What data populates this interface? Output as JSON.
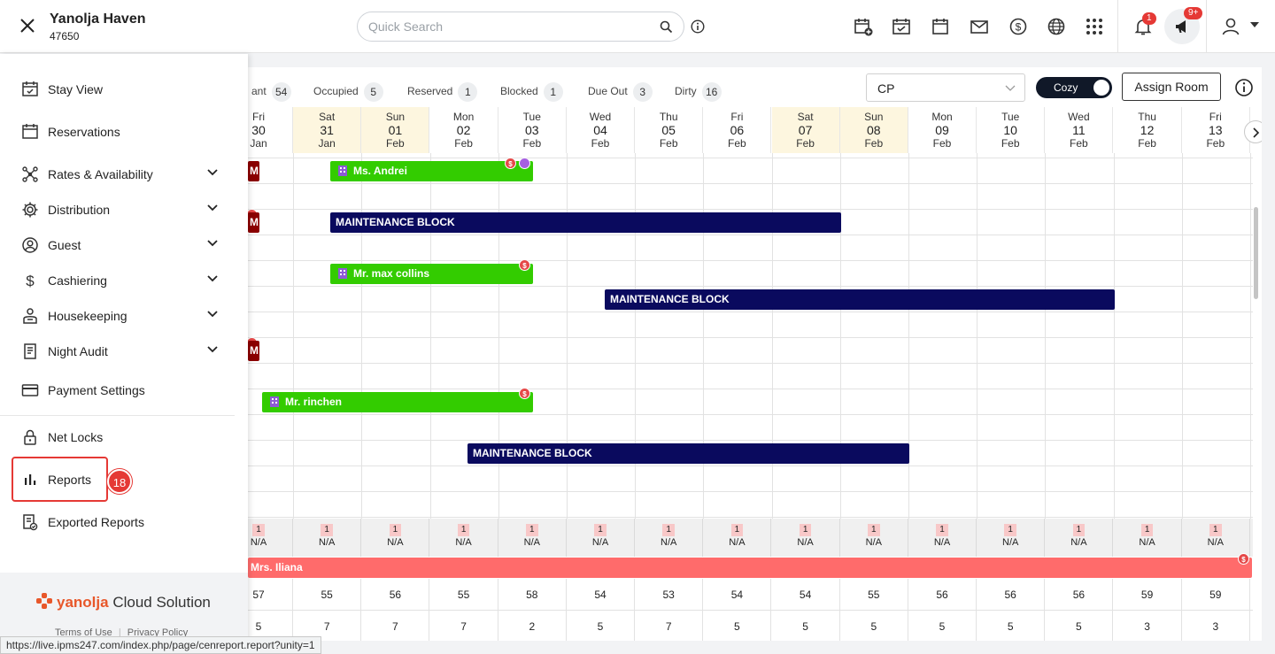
{
  "header": {
    "property_name": "Yanolja Haven",
    "property_id": "47650",
    "search_placeholder": "Quick Search",
    "notification_count": "1",
    "announcement_count": "9+"
  },
  "sidebar": {
    "items": [
      {
        "label": "Stay View",
        "icon": "calendar-check-icon",
        "expandable": false
      },
      {
        "label": "Reservations",
        "icon": "calendar-icon",
        "expandable": false
      },
      {
        "label": "Rates & Availability",
        "icon": "network-icon",
        "expandable": true
      },
      {
        "label": "Distribution",
        "icon": "gear-icon",
        "expandable": true
      },
      {
        "label": "Guest",
        "icon": "guest-icon",
        "expandable": true
      },
      {
        "label": "Cashiering",
        "icon": "dollar-icon",
        "expandable": true
      },
      {
        "label": "Housekeeping",
        "icon": "housekeeping-icon",
        "expandable": true
      },
      {
        "label": "Night Audit",
        "icon": "document-icon",
        "expandable": true
      },
      {
        "label": "Payment Settings",
        "icon": "card-icon",
        "expandable": false
      },
      {
        "label": "Net Locks",
        "icon": "lock-icon",
        "expandable": false
      },
      {
        "label": "Reports",
        "icon": "bar-chart-icon",
        "expandable": false
      },
      {
        "label": "Exported Reports",
        "icon": "exported-report-icon",
        "expandable": false
      }
    ],
    "step_badge": "18",
    "brand_part1": "yanolja",
    "brand_part2": " Cloud Solution",
    "footer_terms": "Terms of Use",
    "footer_privacy": "Privacy Policy"
  },
  "status_url": "https://live.ipms247.com/index.php/page/cenreport.report?unity=1",
  "stats": [
    {
      "label": "ant",
      "count": "54"
    },
    {
      "label": "Occupied",
      "count": "5"
    },
    {
      "label": "Reserved",
      "count": "1"
    },
    {
      "label": "Blocked",
      "count": "1"
    },
    {
      "label": "Due Out",
      "count": "3"
    },
    {
      "label": "Dirty",
      "count": "16"
    }
  ],
  "rate_plan": "CP",
  "view_toggle": "Cozy",
  "assign_room_label": "Assign Room",
  "dates": [
    {
      "dow": "Fri",
      "day": "30",
      "mon": "Jan",
      "weekend": false
    },
    {
      "dow": "Sat",
      "day": "31",
      "mon": "Jan",
      "weekend": true
    },
    {
      "dow": "Sun",
      "day": "01",
      "mon": "Feb",
      "weekend": true
    },
    {
      "dow": "Mon",
      "day": "02",
      "mon": "Feb",
      "weekend": false
    },
    {
      "dow": "Tue",
      "day": "03",
      "mon": "Feb",
      "weekend": false
    },
    {
      "dow": "Wed",
      "day": "04",
      "mon": "Feb",
      "weekend": false
    },
    {
      "dow": "Thu",
      "day": "05",
      "mon": "Feb",
      "weekend": false
    },
    {
      "dow": "Fri",
      "day": "06",
      "mon": "Feb",
      "weekend": false
    },
    {
      "dow": "Sat",
      "day": "07",
      "mon": "Feb",
      "weekend": true
    },
    {
      "dow": "Sun",
      "day": "08",
      "mon": "Feb",
      "weekend": true
    },
    {
      "dow": "Mon",
      "day": "09",
      "mon": "Feb",
      "weekend": false
    },
    {
      "dow": "Tue",
      "day": "10",
      "mon": "Feb",
      "weekend": false
    },
    {
      "dow": "Wed",
      "day": "11",
      "mon": "Feb",
      "weekend": false
    },
    {
      "dow": "Thu",
      "day": "12",
      "mon": "Feb",
      "weekend": false
    },
    {
      "dow": "Fri",
      "day": "13",
      "mon": "Feb",
      "weekend": false
    }
  ],
  "bookings": {
    "andrei": "Ms. Andrei",
    "maint1": "MAINTENANCE BLOCK",
    "collins": "Mr. max collins",
    "maint2": "MAINTENANCE BLOCK",
    "rinchen": "Mr. rinchen",
    "maint3": "MAINTENANCE BLOCK",
    "iliana": "Mrs. Iliana",
    "stub": "M",
    "dollar": "$"
  },
  "avail_row": [
    {
      "count": "1",
      "rate": "N/A"
    },
    {
      "count": "1",
      "rate": "N/A"
    },
    {
      "count": "1",
      "rate": "N/A"
    },
    {
      "count": "1",
      "rate": "N/A"
    },
    {
      "count": "1",
      "rate": "N/A"
    },
    {
      "count": "1",
      "rate": "N/A"
    },
    {
      "count": "1",
      "rate": "N/A"
    },
    {
      "count": "1",
      "rate": "N/A"
    },
    {
      "count": "1",
      "rate": "N/A"
    },
    {
      "count": "1",
      "rate": "N/A"
    },
    {
      "count": "1",
      "rate": "N/A"
    },
    {
      "count": "1",
      "rate": "N/A"
    },
    {
      "count": "1",
      "rate": "N/A"
    },
    {
      "count": "1",
      "rate": "N/A"
    },
    {
      "count": "1",
      "rate": "N/A"
    }
  ],
  "available_rooms": [
    "57",
    "55",
    "56",
    "55",
    "58",
    "54",
    "53",
    "54",
    "54",
    "55",
    "56",
    "56",
    "56",
    "59",
    "59"
  ],
  "occupancy_row": [
    "5",
    "7",
    "7",
    "7",
    "2",
    "5",
    "7",
    "5",
    "5",
    "5",
    "5",
    "5",
    "5",
    "3",
    "3"
  ],
  "colors": {
    "reservation_green": "#33cc00",
    "maintenance_navy": "#0a0a5e",
    "checked_out_red": "#ff6b6b",
    "weekend_bg": "#fdf6df",
    "highlight_red": "#e53935"
  }
}
